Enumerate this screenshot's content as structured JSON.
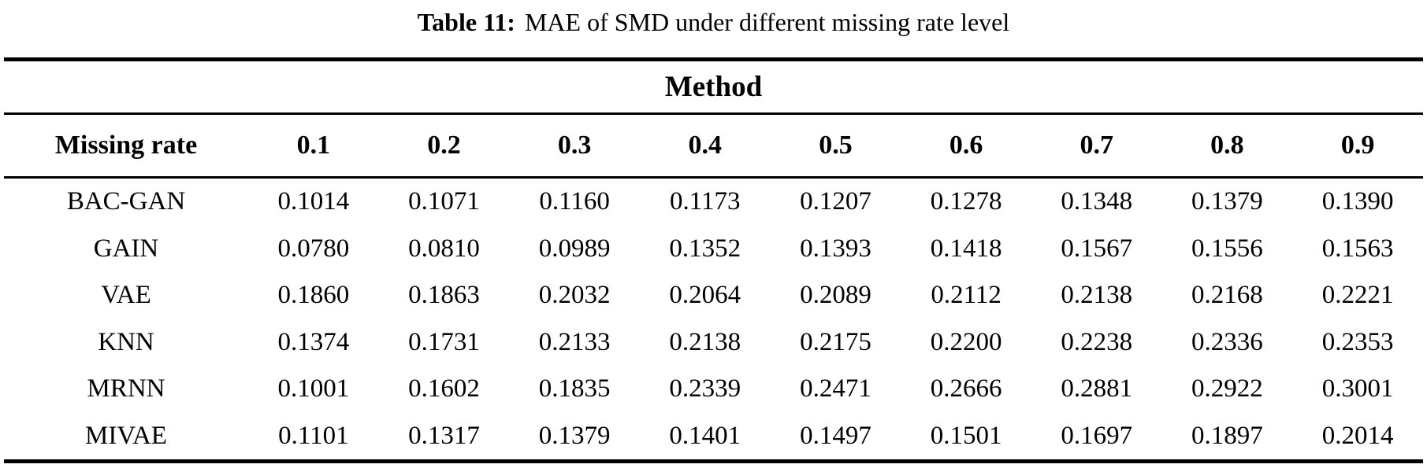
{
  "colors": {
    "text": "#000000",
    "background": "#ffffff",
    "rule": "#000000"
  },
  "caption": {
    "label": "Table 11:",
    "text": "MAE of SMD under different missing rate level"
  },
  "table": {
    "group_header": "Method",
    "row_header_label": "Missing rate",
    "columns": [
      "0.1",
      "0.2",
      "0.3",
      "0.4",
      "0.5",
      "0.6",
      "0.7",
      "0.8",
      "0.9"
    ],
    "rows": [
      {
        "method": "BAC-GAN",
        "values": [
          "0.1014",
          "0.1071",
          "0.1160",
          "0.1173",
          "0.1207",
          "0.1278",
          "0.1348",
          "0.1379",
          "0.1390"
        ]
      },
      {
        "method": "GAIN",
        "values": [
          "0.0780",
          "0.0810",
          "0.0989",
          "0.1352",
          "0.1393",
          "0.1418",
          "0.1567",
          "0.1556",
          "0.1563"
        ]
      },
      {
        "method": "VAE",
        "values": [
          "0.1860",
          "0.1863",
          "0.2032",
          "0.2064",
          "0.2089",
          "0.2112",
          "0.2138",
          "0.2168",
          "0.2221"
        ]
      },
      {
        "method": "KNN",
        "values": [
          "0.1374",
          "0.1731",
          "0.2133",
          "0.2138",
          "0.2175",
          "0.2200",
          "0.2238",
          "0.2336",
          "0.2353"
        ]
      },
      {
        "method": "MRNN",
        "values": [
          "0.1001",
          "0.1602",
          "0.1835",
          "0.2339",
          "0.2471",
          "0.2666",
          "0.2881",
          "0.2922",
          "0.3001"
        ]
      },
      {
        "method": "MIVAE",
        "values": [
          "0.1101",
          "0.1317",
          "0.1379",
          "0.1401",
          "0.1497",
          "0.1501",
          "0.1697",
          "0.1897",
          "0.2014"
        ]
      }
    ]
  }
}
